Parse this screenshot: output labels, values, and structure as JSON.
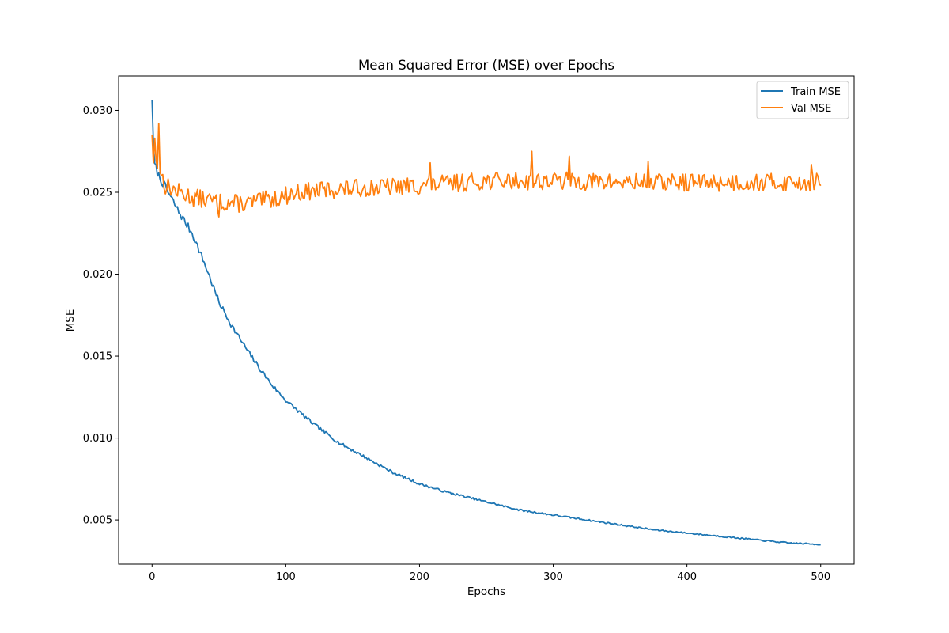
{
  "colors": {
    "train": "#1f77b4",
    "val": "#ff7f0e",
    "axes": "#000000",
    "legend_border": "#cccccc",
    "background": "#ffffff"
  },
  "chart_data": {
    "type": "line",
    "title": "Mean Squared Error (MSE) over Epochs",
    "xlabel": "Epochs",
    "ylabel": "MSE",
    "xlim": [
      -25,
      525
    ],
    "ylim": [
      0.0023,
      0.0321
    ],
    "x_ticks": [
      0,
      100,
      200,
      300,
      400,
      500
    ],
    "x_tick_labels": [
      "0",
      "100",
      "200",
      "300",
      "400",
      "500"
    ],
    "y_ticks": [
      0.005,
      0.01,
      0.015,
      0.02,
      0.025,
      0.03
    ],
    "y_tick_labels": [
      "0.005",
      "0.010",
      "0.015",
      "0.020",
      "0.025",
      "0.030"
    ],
    "grid": false,
    "legend_position": "top-right",
    "x_range": {
      "start": 0,
      "end": 500,
      "step": 1
    },
    "series": [
      {
        "name": "Train MSE",
        "color": "#1f77b4",
        "anchors": [
          [
            0,
            0.0308
          ],
          [
            1,
            0.0278
          ],
          [
            2,
            0.0267
          ],
          [
            5,
            0.026
          ],
          [
            10,
            0.0253
          ],
          [
            20,
            0.0238
          ],
          [
            30,
            0.0225
          ],
          [
            40,
            0.0205
          ],
          [
            50,
            0.0183
          ],
          [
            60,
            0.0168
          ],
          [
            70,
            0.0155
          ],
          [
            80,
            0.0143
          ],
          [
            90,
            0.0132
          ],
          [
            100,
            0.0123
          ],
          [
            120,
            0.0109
          ],
          [
            140,
            0.0097
          ],
          [
            160,
            0.0088
          ],
          [
            180,
            0.0079
          ],
          [
            200,
            0.0072
          ],
          [
            220,
            0.0067
          ],
          [
            250,
            0.0061
          ],
          [
            275,
            0.0056
          ],
          [
            300,
            0.0053
          ],
          [
            325,
            0.005
          ],
          [
            350,
            0.0047
          ],
          [
            375,
            0.0044
          ],
          [
            400,
            0.0042
          ],
          [
            425,
            0.004
          ],
          [
            450,
            0.0038
          ],
          [
            475,
            0.0036
          ],
          [
            500,
            0.0035
          ]
        ],
        "noise": 0.00012,
        "seed": 7
      },
      {
        "name": "Val MSE",
        "color": "#ff7f0e",
        "anchors": [
          [
            0,
            0.0285
          ],
          [
            2,
            0.0272
          ],
          [
            5,
            0.0265
          ],
          [
            10,
            0.0254
          ],
          [
            20,
            0.025
          ],
          [
            30,
            0.0247
          ],
          [
            50,
            0.0244
          ],
          [
            70,
            0.0243
          ],
          [
            90,
            0.0246
          ],
          [
            110,
            0.025
          ],
          [
            140,
            0.0252
          ],
          [
            170,
            0.0253
          ],
          [
            200,
            0.0254
          ],
          [
            250,
            0.0257
          ],
          [
            300,
            0.0257
          ],
          [
            350,
            0.0256
          ],
          [
            400,
            0.0256
          ],
          [
            450,
            0.0256
          ],
          [
            500,
            0.0256
          ]
        ],
        "noise": 0.00055,
        "seed": 13,
        "spikes": [
          [
            0,
            0.0285
          ],
          [
            1,
            0.0268
          ],
          [
            2,
            0.0283
          ],
          [
            3,
            0.027
          ],
          [
            5,
            0.0292
          ],
          [
            6,
            0.0262
          ],
          [
            50,
            0.0235
          ],
          [
            208,
            0.0268
          ],
          [
            284,
            0.0275
          ],
          [
            312,
            0.0272
          ],
          [
            371,
            0.0269
          ],
          [
            493,
            0.0267
          ]
        ],
        "last_value": 0.0254
      }
    ]
  }
}
